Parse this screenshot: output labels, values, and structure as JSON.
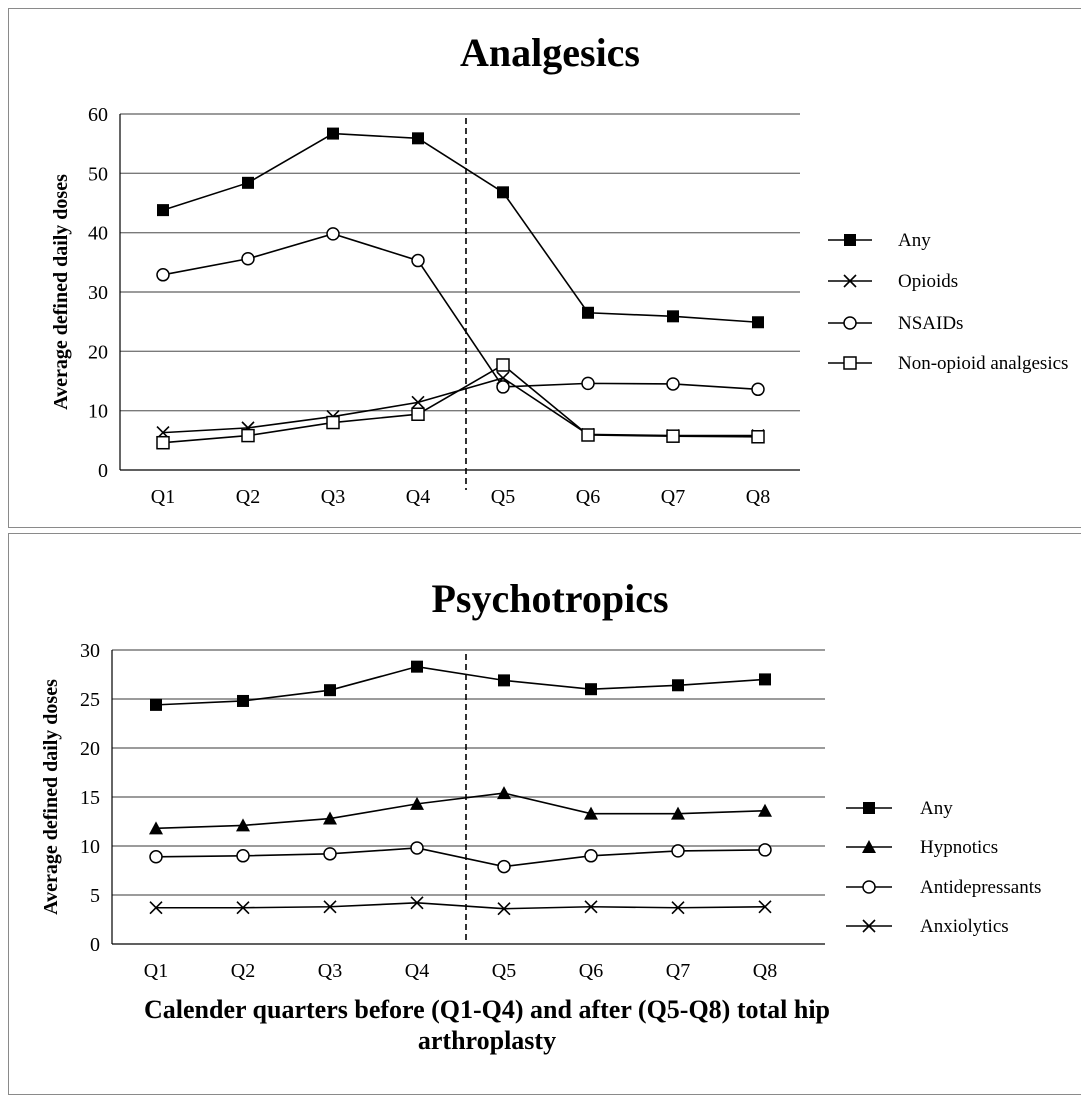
{
  "chart_data": [
    {
      "type": "line",
      "title": "Analgesics",
      "ylabel": "Average defined daily doses",
      "xlabel": "",
      "categories": [
        "Q1",
        "Q2",
        "Q3",
        "Q4",
        "Q5",
        "Q6",
        "Q7",
        "Q8"
      ],
      "ylim": [
        0,
        60
      ],
      "yticks": [
        0,
        10,
        20,
        30,
        40,
        50,
        60
      ],
      "grid": true,
      "divider_between": [
        "Q4",
        "Q5"
      ],
      "legend_position": "right",
      "series": [
        {
          "name": "Any",
          "marker": "filled-square",
          "values": [
            43.8,
            48.4,
            56.7,
            55.9,
            46.8,
            26.5,
            25.9,
            24.9
          ]
        },
        {
          "name": "Opioids",
          "marker": "x",
          "values": [
            6.3,
            7.1,
            9.0,
            11.4,
            15.5,
            6.0,
            5.8,
            5.8
          ]
        },
        {
          "name": "NSAIDs",
          "marker": "open-circle",
          "values": [
            32.9,
            35.6,
            39.8,
            35.3,
            14.0,
            14.6,
            14.5,
            13.6
          ]
        },
        {
          "name": "Non-opioid analgesics",
          "marker": "open-square",
          "values": [
            4.6,
            5.8,
            8.0,
            9.4,
            17.7,
            5.9,
            5.7,
            5.6
          ]
        }
      ]
    },
    {
      "type": "line",
      "title": "Psychotropics",
      "ylabel": "Average defined daily doses",
      "xlabel": "Calender quarters before (Q1-Q4) and after (Q5-Q8) total hip arthroplasty",
      "xlabel_lines": [
        "Calender quarters before (Q1-Q4) and after (Q5-Q8) total hip",
        "arthroplasty"
      ],
      "categories": [
        "Q1",
        "Q2",
        "Q3",
        "Q4",
        "Q5",
        "Q6",
        "Q7",
        "Q8"
      ],
      "ylim": [
        0,
        30
      ],
      "yticks": [
        0,
        5,
        10,
        15,
        20,
        25,
        30
      ],
      "grid": true,
      "divider_between": [
        "Q4",
        "Q5"
      ],
      "legend_position": "right",
      "series": [
        {
          "name": "Any",
          "marker": "filled-square",
          "values": [
            24.4,
            24.8,
            25.9,
            28.3,
            26.9,
            26.0,
            26.4,
            27.0
          ]
        },
        {
          "name": "Hypnotics",
          "marker": "filled-triangle",
          "values": [
            11.8,
            12.1,
            12.8,
            14.3,
            15.4,
            13.3,
            13.3,
            13.6
          ]
        },
        {
          "name": "Antidepressants",
          "marker": "open-circle",
          "values": [
            8.9,
            9.0,
            9.2,
            9.8,
            7.9,
            9.0,
            9.5,
            9.6
          ]
        },
        {
          "name": "Anxiolytics",
          "marker": "x",
          "values": [
            3.7,
            3.7,
            3.8,
            4.2,
            3.6,
            3.8,
            3.7,
            3.8
          ]
        }
      ]
    }
  ]
}
